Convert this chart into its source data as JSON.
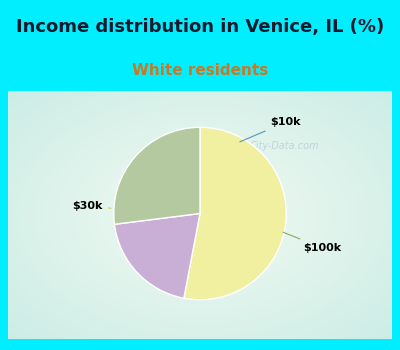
{
  "title": "Income distribution in Venice, IL (%)",
  "subtitle": "White residents",
  "title_color": "#1a1a2e",
  "subtitle_color": "#cc7722",
  "slices": [
    {
      "label": "$10k",
      "value": 20,
      "color": "#c9aed6"
    },
    {
      "label": "$100k",
      "value": 27,
      "color": "#b5c9a0"
    },
    {
      "label": "$30k",
      "value": 53,
      "color": "#f0f0a0"
    }
  ],
  "bg_color_top": "#00eeff",
  "chart_bg": "#e8f8f0",
  "startangle": 90,
  "label_fontsize": 8,
  "title_fontsize": 13,
  "subtitle_fontsize": 11,
  "watermark": "City-Data.com",
  "watermark_color": "#aabbcc"
}
